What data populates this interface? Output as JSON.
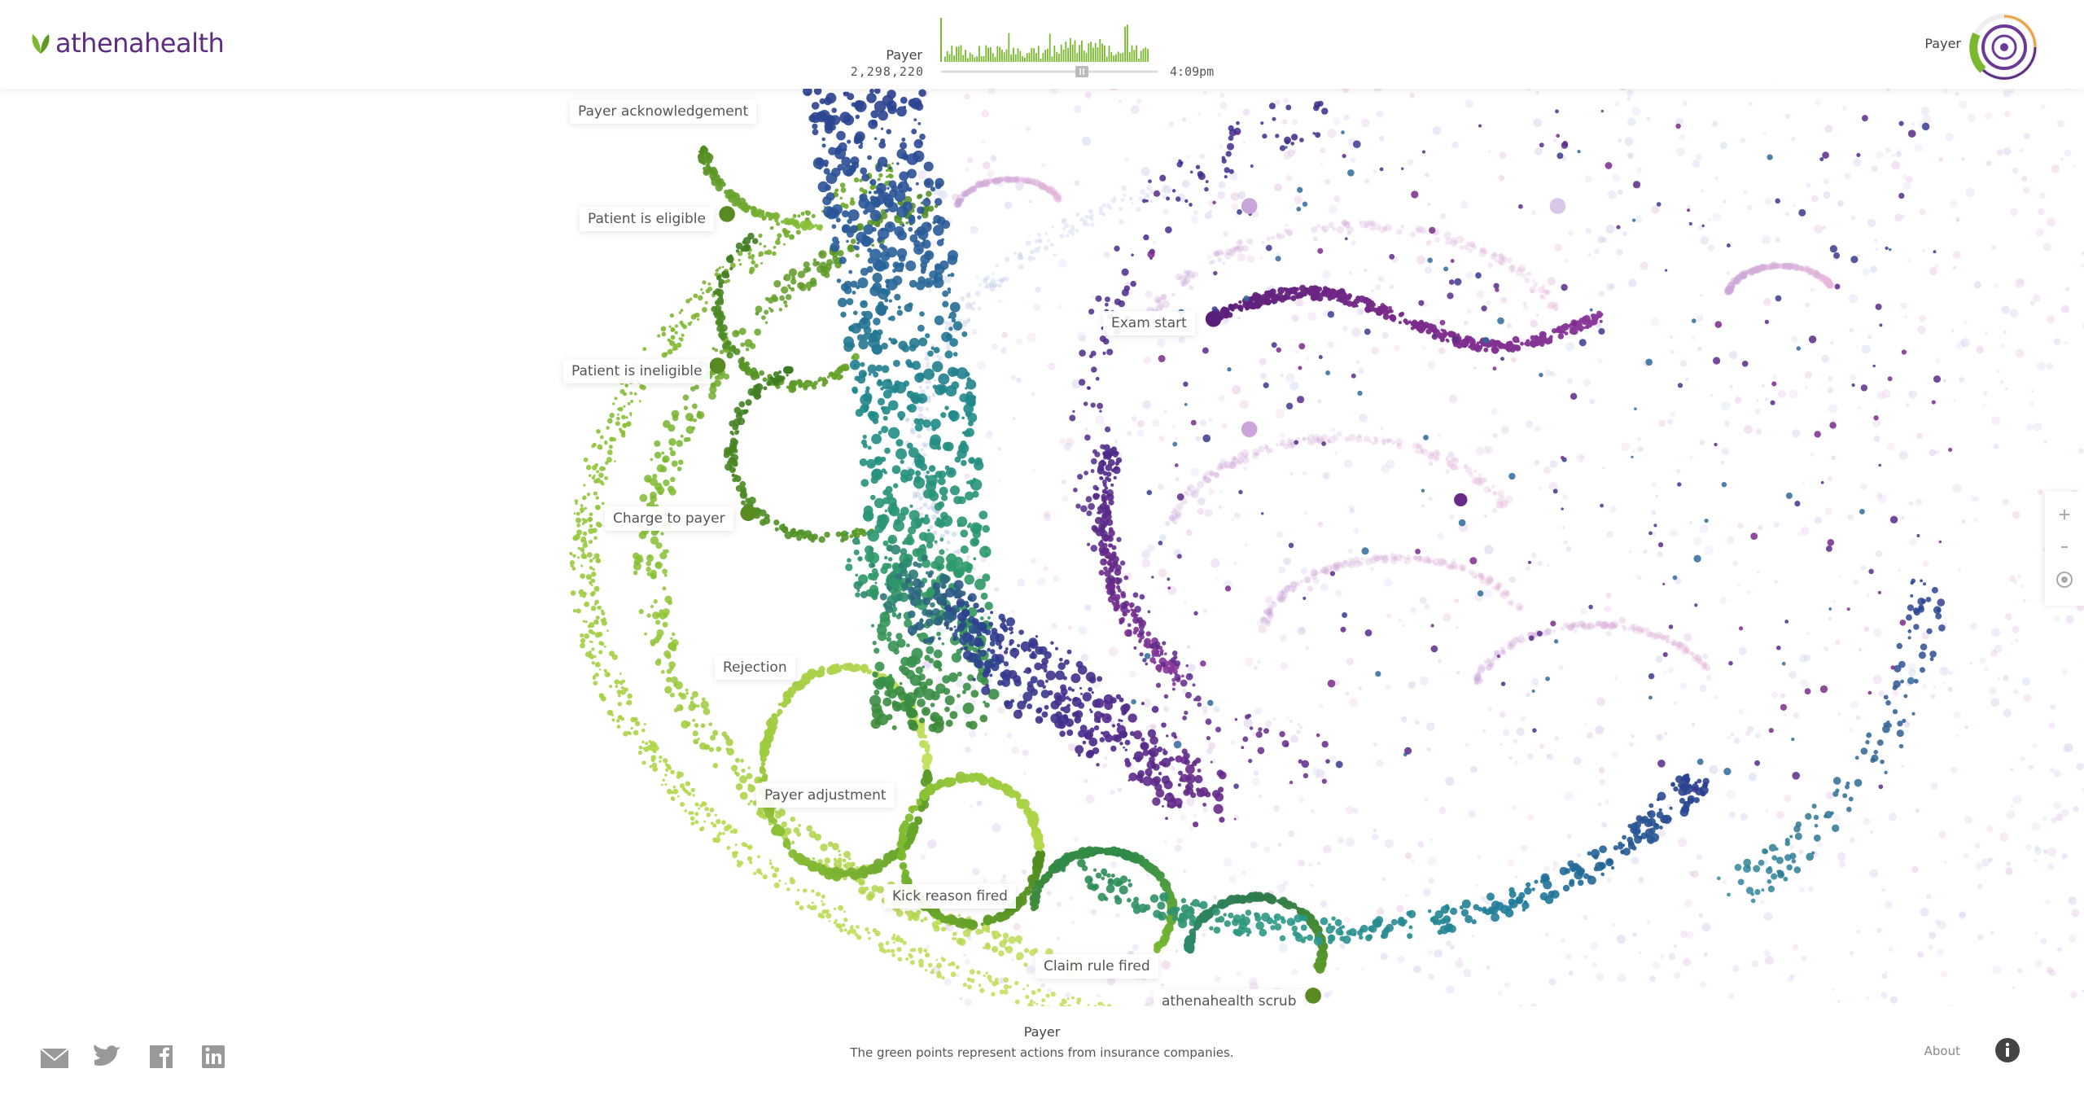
{
  "header": {
    "logo": "athenahealth",
    "timeline": {
      "label": "Payer",
      "count": "2,298,220",
      "time": "4:09pm"
    },
    "filter_label": "Payer"
  },
  "nodes": [
    {
      "label": "Payer acknowledgement"
    },
    {
      "label": "Patient is eligible"
    },
    {
      "label": "Patient is ineligible"
    },
    {
      "label": "Charge to payer"
    },
    {
      "label": "Rejection"
    },
    {
      "label": "Payer adjustment"
    },
    {
      "label": "Kick reason fired"
    },
    {
      "label": "Claim rule fired"
    },
    {
      "label": "athenahealth scrub"
    },
    {
      "label": "Exam start"
    }
  ],
  "footer": {
    "title": "Payer",
    "caption": "The green points represent actions from insurance companies.",
    "about": "About"
  }
}
